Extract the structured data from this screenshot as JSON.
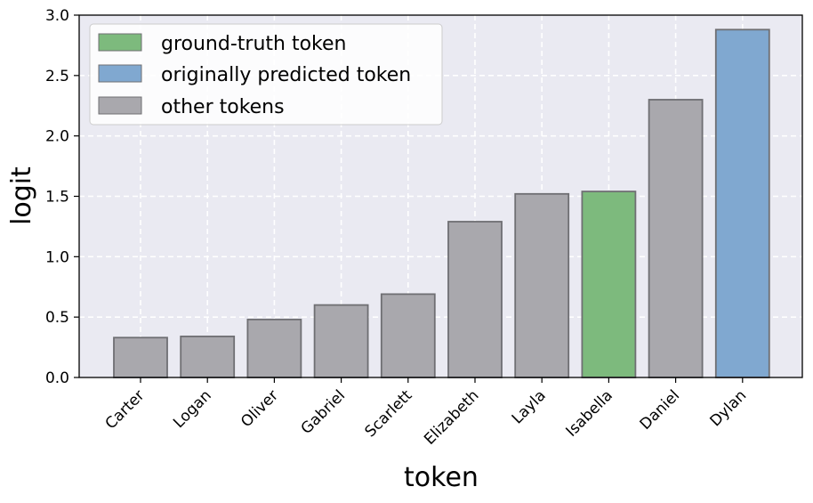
{
  "chart_data": {
    "type": "bar",
    "categories": [
      "Carter",
      "Logan",
      "Oliver",
      "Gabriel",
      "Scarlett",
      "Elizabeth",
      "Layla",
      "Isabella",
      "Daniel",
      "Dylan"
    ],
    "values": [
      0.33,
      0.34,
      0.48,
      0.6,
      0.69,
      1.29,
      1.52,
      1.54,
      2.3,
      2.88
    ],
    "bar_groups": [
      "other",
      "other",
      "other",
      "other",
      "other",
      "other",
      "other",
      "ground_truth",
      "other",
      "predicted"
    ],
    "xlabel": "token",
    "ylabel": "logit",
    "ylim": [
      0,
      3.0
    ],
    "yticks": [
      0.0,
      0.5,
      1.0,
      1.5,
      2.0,
      2.5,
      3.0
    ],
    "ytick_labels": [
      "0.0",
      "0.5",
      "1.0",
      "1.5",
      "2.0",
      "2.5",
      "3.0"
    ],
    "grid": true,
    "legend_position": "top-left",
    "legend": [
      {
        "key": "ground_truth",
        "label": "ground-truth token",
        "color": "#7dba7d"
      },
      {
        "key": "predicted",
        "label": "originally predicted token",
        "color": "#80a8d0"
      },
      {
        "key": "other",
        "label": "other tokens",
        "color": "#a9a8ad"
      }
    ],
    "colors": {
      "ground_truth": "#7dba7d",
      "predicted": "#80a8d0",
      "other": "#a9a8ad",
      "plot_background": "#eaeaf2",
      "bar_edge": "#6f6f73"
    }
  }
}
